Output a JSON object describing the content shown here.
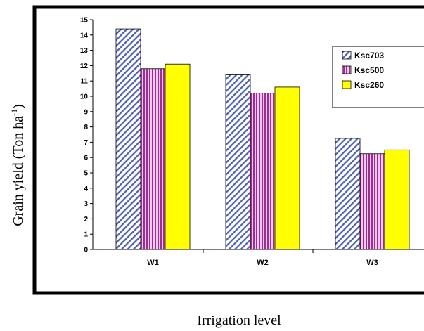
{
  "chart_data": {
    "type": "bar",
    "categories": [
      "W1",
      "W2",
      "W3"
    ],
    "series": [
      {
        "name": "Ksc703",
        "values": [
          14.4,
          11.4,
          7.25
        ],
        "pattern": "diagonal-stripes",
        "color": "#4b5fb4"
      },
      {
        "name": "Ksc500",
        "values": [
          11.8,
          10.2,
          6.25
        ],
        "pattern": "vertical-stripes",
        "color": "#9b2f8f"
      },
      {
        "name": "Ksc260",
        "values": [
          12.1,
          10.6,
          6.5
        ],
        "pattern": "solid",
        "color": "#ffff00"
      }
    ],
    "xlabel": "Irrigation level",
    "ylabel_main": "Grain yield (Ton ha",
    "ylabel_sup": "-1",
    "ylabel_tail": ")",
    "ylim": [
      0,
      15
    ],
    "yticks": [
      0,
      1,
      2,
      3,
      4,
      5,
      6,
      7,
      8,
      9,
      10,
      11,
      12,
      13,
      14,
      15
    ],
    "grid": false,
    "legend_position": "top-right"
  }
}
